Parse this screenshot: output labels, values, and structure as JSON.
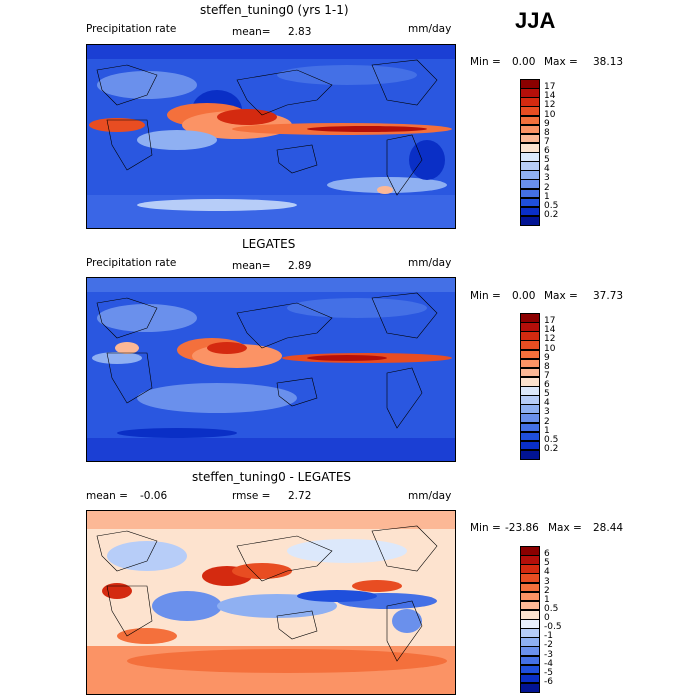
{
  "season": "JJA",
  "panels": [
    {
      "title": "steffen_tuning0 (yrs 1-1)",
      "variable": "Precipitation rate",
      "mean_label": "mean=",
      "mean_value": "2.83",
      "units": "mm/day",
      "min_label": "Min =",
      "min_value": "0.00",
      "max_label": "Max =",
      "max_value": "38.13"
    },
    {
      "title": "LEGATES",
      "variable": "Precipitation rate",
      "mean_label": "mean=",
      "mean_value": "2.89",
      "units": "mm/day",
      "min_label": "Min =",
      "min_value": "0.00",
      "max_label": "Max =",
      "max_value": "37.73"
    },
    {
      "title": "steffen_tuning0 - LEGATES",
      "mean_label": "mean =",
      "mean_value": "-0.06",
      "rmse_label": "rmse =",
      "rmse_value": "2.72",
      "units": "mm/day",
      "min_label": "Min =",
      "min_value": "-23.86",
      "max_label": "Max =",
      "max_value": "28.44"
    }
  ],
  "colorbar_precip": {
    "levels": [
      "17",
      "14",
      "12",
      "10",
      "9",
      "8",
      "7",
      "6",
      "5",
      "4",
      "3",
      "2",
      "1",
      "0.5",
      "0.2"
    ],
    "colors": [
      "#8b0000",
      "#b40f0a",
      "#d42a10",
      "#e84d22",
      "#f4703c",
      "#fb9365",
      "#fcb896",
      "#fde3cf",
      "#dce8fb",
      "#b7cdf8",
      "#8fb0f2",
      "#6a90ec",
      "#4470e6",
      "#1f4fdc",
      "#0a2fc6",
      "#021494"
    ]
  },
  "colorbar_diff": {
    "levels": [
      "6",
      "5",
      "4",
      "3",
      "2",
      "1",
      "0.5",
      "0",
      "-0.5",
      "-1",
      "-2",
      "-3",
      "-4",
      "-5",
      "-6"
    ],
    "colors": [
      "#8b0000",
      "#b40f0a",
      "#d42a10",
      "#e84d22",
      "#f4703c",
      "#fb9365",
      "#fcb896",
      "#fde3cf",
      "#e8effd",
      "#b7cdf8",
      "#8fb0f2",
      "#6a90ec",
      "#4470e6",
      "#1f4fdc",
      "#0a2fc6",
      "#021494"
    ]
  }
}
